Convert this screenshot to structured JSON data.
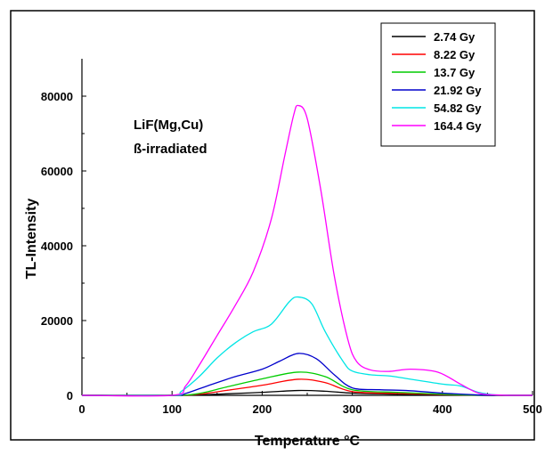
{
  "chart_data": {
    "type": "line",
    "xlabel": "Temperature °C",
    "ylabel": "TL-Intensity",
    "xlim": [
      0,
      500
    ],
    "ylim": [
      0,
      90000
    ],
    "x_ticks": [
      0,
      100,
      200,
      300,
      400,
      500
    ],
    "y_ticks": [
      0,
      20000,
      40000,
      60000,
      80000
    ],
    "grid": false,
    "legend_position": "top-right",
    "annotation": [
      "LiF(Mg,Cu)",
      "ß-irradiated"
    ],
    "series": [
      {
        "name": "2.74 Gy",
        "color": "#000000",
        "points": [
          [
            0,
            0
          ],
          [
            100,
            0
          ],
          [
            130,
            100
          ],
          [
            160,
            400
          ],
          [
            200,
            800
          ],
          [
            240,
            1300
          ],
          [
            270,
            1100
          ],
          [
            300,
            600
          ],
          [
            350,
            300
          ],
          [
            400,
            100
          ],
          [
            450,
            0
          ],
          [
            500,
            0
          ]
        ]
      },
      {
        "name": "8.22 Gy",
        "color": "#ff0000",
        "points": [
          [
            0,
            0
          ],
          [
            100,
            0
          ],
          [
            130,
            300
          ],
          [
            160,
            1300
          ],
          [
            200,
            2700
          ],
          [
            240,
            4300
          ],
          [
            270,
            3400
          ],
          [
            300,
            1000
          ],
          [
            350,
            500
          ],
          [
            400,
            200
          ],
          [
            450,
            0
          ],
          [
            500,
            0
          ]
        ]
      },
      {
        "name": "13.7 Gy",
        "color": "#00cc00",
        "points": [
          [
            0,
            0
          ],
          [
            100,
            0
          ],
          [
            130,
            500
          ],
          [
            160,
            2200
          ],
          [
            200,
            4400
          ],
          [
            240,
            6200
          ],
          [
            270,
            5000
          ],
          [
            300,
            1500
          ],
          [
            350,
            800
          ],
          [
            400,
            300
          ],
          [
            450,
            0
          ],
          [
            500,
            0
          ]
        ]
      },
      {
        "name": "21.92 Gy",
        "color": "#0000cc",
        "points": [
          [
            0,
            0
          ],
          [
            100,
            0
          ],
          [
            115,
            500
          ],
          [
            140,
            2600
          ],
          [
            170,
            5000
          ],
          [
            200,
            7000
          ],
          [
            220,
            9200
          ],
          [
            240,
            11200
          ],
          [
            260,
            9800
          ],
          [
            280,
            5500
          ],
          [
            300,
            2000
          ],
          [
            330,
            1500
          ],
          [
            360,
            1300
          ],
          [
            400,
            600
          ],
          [
            440,
            100
          ],
          [
            460,
            0
          ],
          [
            500,
            0
          ]
        ]
      },
      {
        "name": "54.82 Gy",
        "color": "#00e5e5",
        "points": [
          [
            0,
            0
          ],
          [
            100,
            0
          ],
          [
            110,
            1000
          ],
          [
            130,
            5000
          ],
          [
            150,
            10000
          ],
          [
            170,
            14000
          ],
          [
            190,
            17000
          ],
          [
            210,
            19000
          ],
          [
            230,
            25000
          ],
          [
            240,
            26300
          ],
          [
            255,
            24500
          ],
          [
            270,
            17000
          ],
          [
            290,
            9000
          ],
          [
            300,
            6500
          ],
          [
            320,
            5500
          ],
          [
            340,
            5200
          ],
          [
            360,
            4500
          ],
          [
            400,
            3000
          ],
          [
            420,
            2500
          ],
          [
            440,
            800
          ],
          [
            460,
            100
          ],
          [
            480,
            0
          ],
          [
            500,
            0
          ]
        ]
      },
      {
        "name": "164.4 Gy",
        "color": "#ff00ff",
        "points": [
          [
            0,
            0
          ],
          [
            100,
            0
          ],
          [
            115,
            2500
          ],
          [
            130,
            8000
          ],
          [
            150,
            16000
          ],
          [
            170,
            24000
          ],
          [
            190,
            33000
          ],
          [
            210,
            47000
          ],
          [
            225,
            64000
          ],
          [
            235,
            75000
          ],
          [
            240,
            77500
          ],
          [
            250,
            74000
          ],
          [
            265,
            55000
          ],
          [
            280,
            32000
          ],
          [
            295,
            15000
          ],
          [
            305,
            9000
          ],
          [
            320,
            6800
          ],
          [
            340,
            6400
          ],
          [
            365,
            7000
          ],
          [
            395,
            6200
          ],
          [
            420,
            3000
          ],
          [
            440,
            600
          ],
          [
            460,
            100
          ],
          [
            480,
            0
          ],
          [
            500,
            0
          ]
        ]
      }
    ]
  }
}
